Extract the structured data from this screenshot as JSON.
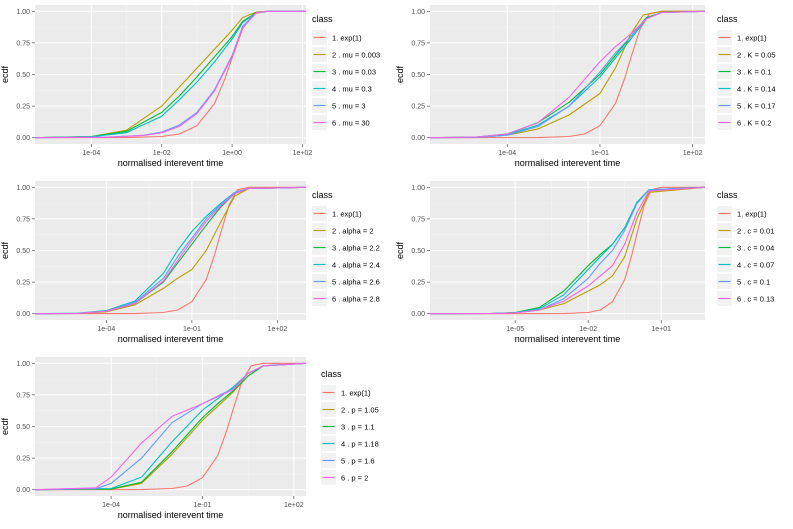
{
  "chart_data": [
    {
      "type": "line",
      "xscale": "log10",
      "xlim_log10": [
        -5.6,
        2.1
      ],
      "ylim": [
        0,
        1
      ],
      "xlabel": "normalised interevent time",
      "ylabel": "ecdf",
      "xticks": [
        "1e-04",
        "1e-02",
        "1e+00",
        "1e+02"
      ],
      "xtick_log10": [
        -4,
        -2,
        0,
        2
      ],
      "yticks": [
        "0.00",
        "0.25",
        "0.50",
        "0.75",
        "1.00"
      ],
      "legend_title": "class",
      "series": [
        {
          "name": "1. exp(1)",
          "color": "#F8766D",
          "x_log10": [
            -5.6,
            -3,
            -2,
            -1.5,
            -1,
            -0.5,
            -0.2,
            0,
            0.3,
            0.6,
            1,
            2.1
          ],
          "y": [
            0,
            0.001,
            0.01,
            0.03,
            0.095,
            0.27,
            0.47,
            0.63,
            0.86,
            0.98,
            1,
            1
          ]
        },
        {
          "name": "2 . mu = 0.003",
          "color": "#B79F00",
          "x_log10": [
            -5.6,
            -4,
            -3,
            -2,
            -1.5,
            -1,
            -0.5,
            0,
            0.3,
            0.7,
            1,
            2.1
          ],
          "y": [
            0,
            0.01,
            0.06,
            0.25,
            0.4,
            0.55,
            0.7,
            0.85,
            0.95,
            0.995,
            1,
            1
          ]
        },
        {
          "name": "3 . mu = 0.03",
          "color": "#00BA38",
          "x_log10": [
            -5.6,
            -4,
            -3,
            -2,
            -1.5,
            -1,
            -0.5,
            0,
            0.3,
            0.7,
            1,
            2.1
          ],
          "y": [
            0,
            0.01,
            0.05,
            0.2,
            0.33,
            0.48,
            0.64,
            0.8,
            0.92,
            0.99,
            1,
            1
          ]
        },
        {
          "name": "4 . mu = 0.3",
          "color": "#00BFC4",
          "x_log10": [
            -5.6,
            -4,
            -3,
            -2,
            -1.5,
            -1,
            -0.5,
            0,
            0.3,
            0.7,
            1,
            2.1
          ],
          "y": [
            0,
            0.008,
            0.04,
            0.17,
            0.3,
            0.44,
            0.6,
            0.78,
            0.91,
            0.99,
            1,
            1
          ]
        },
        {
          "name": "5 . mu = 3",
          "color": "#619CFF",
          "x_log10": [
            -5.6,
            -3.5,
            -2.5,
            -2,
            -1.5,
            -1,
            -0.5,
            0,
            0.3,
            0.7,
            1,
            2.1
          ],
          "y": [
            0,
            0.005,
            0.02,
            0.045,
            0.1,
            0.2,
            0.38,
            0.65,
            0.88,
            0.99,
            1,
            1
          ]
        },
        {
          "name": "6 . mu = 30",
          "color": "#F564E3",
          "x_log10": [
            -5.6,
            -3.5,
            -2.5,
            -2,
            -1.5,
            -1,
            -0.5,
            0,
            0.3,
            0.7,
            1,
            2.1
          ],
          "y": [
            0,
            0.004,
            0.018,
            0.04,
            0.09,
            0.19,
            0.37,
            0.64,
            0.87,
            0.99,
            1,
            1
          ]
        }
      ]
    },
    {
      "type": "line",
      "xscale": "log10",
      "xlim_log10": [
        -6.5,
        2.4
      ],
      "ylim": [
        0,
        1
      ],
      "xlabel": "normalised interevent time",
      "ylabel": "ecdf",
      "xticks": [
        "1e-04",
        "1e-01",
        "1e+02"
      ],
      "xtick_log10": [
        -4,
        -1,
        2
      ],
      "yticks": [
        "0.00",
        "0.25",
        "0.50",
        "0.75",
        "1.00"
      ],
      "legend_title": "class",
      "series": [
        {
          "name": "1. exp(1)",
          "color": "#F8766D",
          "x_log10": [
            -6.5,
            -3,
            -2,
            -1.5,
            -1,
            -0.5,
            -0.2,
            0,
            0.3,
            0.6,
            1,
            2.4
          ],
          "y": [
            0,
            0.001,
            0.01,
            0.03,
            0.095,
            0.27,
            0.47,
            0.63,
            0.86,
            0.98,
            1,
            1
          ]
        },
        {
          "name": "2 . K = 0.05",
          "color": "#B79F00",
          "x_log10": [
            -6.5,
            -5,
            -4,
            -3,
            -2,
            -1,
            -0.5,
            0,
            0.4,
            1,
            2.4
          ],
          "y": [
            0,
            0.003,
            0.02,
            0.07,
            0.18,
            0.35,
            0.55,
            0.82,
            0.97,
            1,
            1
          ]
        },
        {
          "name": "3 . K = 0.1",
          "color": "#00BA38",
          "x_log10": [
            -6.5,
            -5,
            -4,
            -3,
            -2,
            -1,
            -0.5,
            0,
            0.5,
            1,
            2.4
          ],
          "y": [
            0,
            0.005,
            0.03,
            0.12,
            0.28,
            0.5,
            0.65,
            0.8,
            0.95,
            0.99,
            1
          ]
        },
        {
          "name": "4 . K = 0.14",
          "color": "#00BFC4",
          "x_log10": [
            -6.5,
            -5,
            -4,
            -3,
            -2,
            -1,
            -0.5,
            0,
            0.5,
            1,
            2.4
          ],
          "y": [
            0,
            0.004,
            0.025,
            0.1,
            0.25,
            0.48,
            0.63,
            0.78,
            0.94,
            0.99,
            1
          ]
        },
        {
          "name": "5 . K = 0.17",
          "color": "#619CFF",
          "x_log10": [
            -6.5,
            -5,
            -4,
            -3,
            -2,
            -1,
            -0.5,
            0,
            0.5,
            1,
            2.4
          ],
          "y": [
            0,
            0.003,
            0.02,
            0.09,
            0.25,
            0.52,
            0.67,
            0.8,
            0.94,
            0.99,
            1
          ]
        },
        {
          "name": "6 . K = 0.2",
          "color": "#F564E3",
          "x_log10": [
            -6.5,
            -5,
            -4,
            -3,
            -2,
            -1,
            -0.5,
            0,
            0.5,
            1,
            2.4
          ],
          "y": [
            0,
            0.005,
            0.03,
            0.12,
            0.32,
            0.6,
            0.72,
            0.82,
            0.94,
            0.99,
            1
          ]
        }
      ]
    },
    {
      "type": "line",
      "xscale": "log10",
      "xlim_log10": [
        -6.5,
        3.0
      ],
      "ylim": [
        0,
        1
      ],
      "xlabel": "normalised interevent time",
      "ylabel": "ecdf",
      "xticks": [
        "1e-04",
        "1e-01",
        "1e+02"
      ],
      "xtick_log10": [
        -4,
        -1,
        2
      ],
      "yticks": [
        "0.00",
        "0.25",
        "0.50",
        "0.75",
        "1.00"
      ],
      "legend_title": "class",
      "series": [
        {
          "name": "1. exp(1)",
          "color": "#F8766D",
          "x_log10": [
            -6.5,
            -3,
            -2,
            -1.5,
            -1,
            -0.5,
            -0.2,
            0,
            0.3,
            0.6,
            1,
            3.0
          ],
          "y": [
            0,
            0.001,
            0.01,
            0.03,
            0.095,
            0.27,
            0.47,
            0.63,
            0.86,
            0.98,
            1,
            1
          ]
        },
        {
          "name": "2 . alpha = 2",
          "color": "#B79F00",
          "x_log10": [
            -6.5,
            -5,
            -4,
            -3,
            -2,
            -1.5,
            -1,
            -0.5,
            0,
            0.5,
            1,
            3.0
          ],
          "y": [
            0,
            0.002,
            0.015,
            0.07,
            0.2,
            0.28,
            0.35,
            0.5,
            0.72,
            0.93,
            0.99,
            1
          ]
        },
        {
          "name": "3 . alpha = 2.2",
          "color": "#00BA38",
          "x_log10": [
            -6.5,
            -5,
            -4,
            -3,
            -2,
            -1.5,
            -1,
            -0.5,
            0,
            0.5,
            1,
            3.0
          ],
          "y": [
            0,
            0.003,
            0.02,
            0.08,
            0.25,
            0.4,
            0.55,
            0.7,
            0.84,
            0.95,
            0.99,
            1
          ]
        },
        {
          "name": "4 . alpha = 2.4",
          "color": "#00BFC4",
          "x_log10": [
            -6.5,
            -5,
            -4,
            -3,
            -2,
            -1.5,
            -1,
            -0.5,
            0,
            0.5,
            1,
            3.0
          ],
          "y": [
            0,
            0.004,
            0.025,
            0.1,
            0.32,
            0.5,
            0.65,
            0.77,
            0.87,
            0.96,
            0.99,
            1
          ]
        },
        {
          "name": "5 . alpha = 2.6",
          "color": "#619CFF",
          "x_log10": [
            -6.5,
            -5,
            -4,
            -3,
            -2,
            -1.5,
            -1,
            -0.5,
            0,
            0.5,
            1,
            3.0
          ],
          "y": [
            0,
            0.003,
            0.02,
            0.09,
            0.28,
            0.45,
            0.6,
            0.75,
            0.86,
            0.96,
            0.99,
            1
          ]
        },
        {
          "name": "6 . alpha = 2.8",
          "color": "#F564E3",
          "x_log10": [
            -6.5,
            -5,
            -4,
            -3,
            -2,
            -1.5,
            -1,
            -0.5,
            0,
            0.5,
            1,
            3.0
          ],
          "y": [
            0,
            0.003,
            0.02,
            0.08,
            0.26,
            0.42,
            0.58,
            0.73,
            0.85,
            0.95,
            0.99,
            1
          ]
        }
      ]
    },
    {
      "type": "line",
      "xscale": "log10",
      "xlim_log10": [
        -8.5,
        2.8
      ],
      "ylim": [
        0,
        1
      ],
      "xlabel": "normalised interevent time",
      "ylabel": "ecdf",
      "xticks": [
        "1e-05",
        "1e-02",
        "1e+01"
      ],
      "xtick_log10": [
        -5,
        -2,
        1
      ],
      "yticks": [
        "0.00",
        "0.25",
        "0.50",
        "0.75",
        "1.00"
      ],
      "legend_title": "class",
      "series": [
        {
          "name": "1. exp(1)",
          "color": "#F8766D",
          "x_log10": [
            -8.5,
            -3,
            -2,
            -1.5,
            -1,
            -0.5,
            -0.2,
            0,
            0.3,
            0.6,
            1,
            2.8
          ],
          "y": [
            0,
            0.001,
            0.01,
            0.03,
            0.095,
            0.27,
            0.47,
            0.63,
            0.86,
            0.98,
            1,
            1
          ]
        },
        {
          "name": "2 . c = 0.01",
          "color": "#B79F00",
          "x_log10": [
            -8.5,
            -6,
            -5,
            -4,
            -3,
            -2,
            -1.5,
            -1,
            -0.5,
            0,
            0.5,
            2.8
          ],
          "y": [
            0,
            0.002,
            0.008,
            0.03,
            0.08,
            0.18,
            0.23,
            0.3,
            0.45,
            0.75,
            0.96,
            1
          ]
        },
        {
          "name": "3 . c = 0.04",
          "color": "#00BA38",
          "x_log10": [
            -8.5,
            -6,
            -5,
            -4,
            -3,
            -2,
            -1.5,
            -1,
            -0.5,
            0,
            0.5,
            2.8
          ],
          "y": [
            0,
            0.002,
            0.01,
            0.05,
            0.18,
            0.38,
            0.47,
            0.55,
            0.68,
            0.88,
            0.98,
            1
          ]
        },
        {
          "name": "4 . c = 0.07",
          "color": "#00BFC4",
          "x_log10": [
            -8.5,
            -6,
            -5,
            -4,
            -3,
            -2,
            -1.5,
            -1,
            -0.5,
            0,
            0.5,
            2.8
          ],
          "y": [
            0,
            0.002,
            0.008,
            0.04,
            0.15,
            0.35,
            0.45,
            0.55,
            0.68,
            0.88,
            0.98,
            1
          ]
        },
        {
          "name": "5 . c = 0.1",
          "color": "#619CFF",
          "x_log10": [
            -8.5,
            -6,
            -5,
            -4,
            -3,
            -2,
            -1.5,
            -1,
            -0.5,
            0,
            0.5,
            2.8
          ],
          "y": [
            0,
            0.002,
            0.007,
            0.03,
            0.12,
            0.28,
            0.4,
            0.5,
            0.66,
            0.87,
            0.98,
            1
          ]
        },
        {
          "name": "6 . c = 0.13",
          "color": "#F564E3",
          "x_log10": [
            -8.5,
            -6,
            -5,
            -4,
            -3,
            -2,
            -1.5,
            -1,
            -0.5,
            0,
            0.5,
            2.8
          ],
          "y": [
            0,
            0.002,
            0.007,
            0.03,
            0.1,
            0.22,
            0.3,
            0.38,
            0.55,
            0.8,
            0.97,
            1
          ]
        }
      ]
    },
    {
      "type": "line",
      "xscale": "log10",
      "xlim_log10": [
        -6.5,
        2.4
      ],
      "ylim": [
        0,
        1
      ],
      "xlabel": "normalised interevent time",
      "ylabel": "ecdf",
      "xticks": [
        "1e-04",
        "1e-01",
        "1e+02"
      ],
      "xtick_log10": [
        -4,
        -1,
        2
      ],
      "yticks": [
        "0.00",
        "0.25",
        "0.50",
        "0.75",
        "1.00"
      ],
      "legend_title": "class",
      "series": [
        {
          "name": "1. exp(1)",
          "color": "#F8766D",
          "x_log10": [
            -6.5,
            -3,
            -2,
            -1.5,
            -1,
            -0.5,
            -0.2,
            0,
            0.3,
            0.6,
            1,
            2.4
          ],
          "y": [
            0,
            0.001,
            0.01,
            0.03,
            0.095,
            0.27,
            0.47,
            0.63,
            0.86,
            0.98,
            1,
            1
          ]
        },
        {
          "name": "2 . p = 1.05",
          "color": "#B79F00",
          "x_log10": [
            -6.5,
            -4,
            -3,
            -2,
            -1,
            -0.5,
            0,
            0.5,
            1,
            2.4
          ],
          "y": [
            0,
            0.004,
            0.05,
            0.28,
            0.55,
            0.66,
            0.77,
            0.9,
            0.98,
            1
          ]
        },
        {
          "name": "3 . p = 1.1",
          "color": "#00BA38",
          "x_log10": [
            -6.5,
            -4,
            -3,
            -2,
            -1,
            -0.5,
            0,
            0.5,
            1,
            2.4
          ],
          "y": [
            0,
            0.006,
            0.06,
            0.3,
            0.57,
            0.68,
            0.78,
            0.9,
            0.98,
            1
          ]
        },
        {
          "name": "4 . p = 1.18",
          "color": "#00BFC4",
          "x_log10": [
            -6.5,
            -4,
            -3,
            -2,
            -1,
            -0.5,
            0,
            0.5,
            1,
            2.4
          ],
          "y": [
            0,
            0.01,
            0.1,
            0.38,
            0.63,
            0.72,
            0.81,
            0.92,
            0.98,
            1
          ]
        },
        {
          "name": "5 . p = 1.6",
          "color": "#619CFF",
          "x_log10": [
            -6.5,
            -4.5,
            -4,
            -3,
            -2,
            -1,
            0,
            0.5,
            1,
            2.4
          ],
          "y": [
            0,
            0.008,
            0.05,
            0.25,
            0.53,
            0.68,
            0.8,
            0.92,
            0.98,
            1
          ]
        },
        {
          "name": "6 . p = 2",
          "color": "#F564E3",
          "x_log10": [
            -6.5,
            -4.5,
            -4,
            -3,
            -2,
            -1,
            0,
            0.5,
            1,
            2.4
          ],
          "y": [
            0,
            0.015,
            0.1,
            0.37,
            0.58,
            0.68,
            0.79,
            0.92,
            0.98,
            1
          ]
        }
      ]
    }
  ]
}
